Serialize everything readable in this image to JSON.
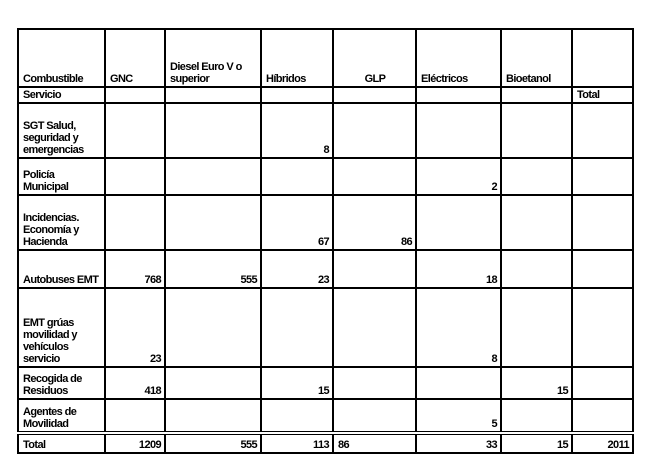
{
  "table": {
    "header": [
      "Combustible",
      "GNC",
      "Diesel Euro V o superior",
      "Híbridos",
      "GLP",
      "Eléctricos",
      "Bioetanol",
      null
    ],
    "subheader": [
      "Servicio",
      null,
      null,
      null,
      null,
      null,
      null,
      "Total"
    ],
    "rows": [
      [
        "SGT Salud, seguridad y emergencias",
        null,
        null,
        8,
        null,
        null,
        null,
        null
      ],
      [
        "Policía Municipal",
        null,
        null,
        null,
        null,
        2,
        null,
        null
      ],
      [
        "Incidencias. Economía y Hacienda",
        null,
        null,
        67,
        86,
        null,
        null,
        null
      ],
      [
        "Autobuses EMT",
        768,
        555,
        23,
        null,
        18,
        null,
        null
      ],
      [
        "EMT grúas movilidad y vehículos servicio",
        23,
        null,
        null,
        null,
        8,
        null,
        null
      ],
      [
        "Recogida de Residuos",
        418,
        null,
        15,
        null,
        null,
        15,
        null
      ],
      [
        "Agentes de Movilidad",
        null,
        null,
        null,
        null,
        5,
        null,
        null
      ],
      [
        "Total",
        1209,
        555,
        113,
        86,
        33,
        15,
        2011
      ]
    ]
  }
}
